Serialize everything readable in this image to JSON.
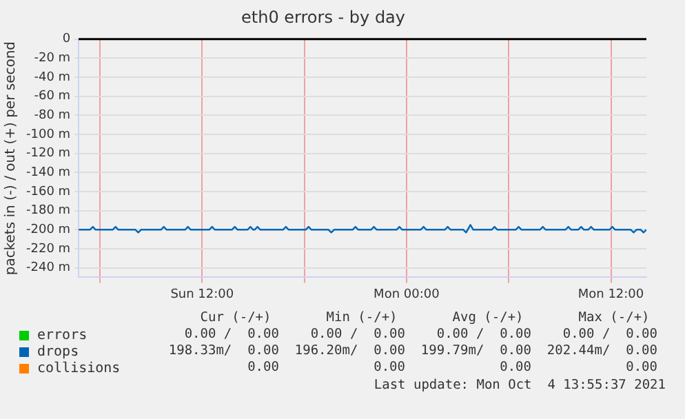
{
  "chart_data": {
    "type": "line",
    "title": "eth0 errors - by day",
    "ylabel": "packets in (-) / out (+) per second",
    "xlim": [
      "2021-10-03T04:45",
      "2021-10-04T14:05"
    ],
    "xticks": [
      {
        "value": "2021-10-03T06:00",
        "label": null
      },
      {
        "value": "2021-10-03T12:00",
        "label": "Sun 12:00"
      },
      {
        "value": "2021-10-03T18:00",
        "label": null
      },
      {
        "value": "2021-10-04T00:00",
        "label": "Mon 00:00"
      },
      {
        "value": "2021-10-04T06:00",
        "label": null
      },
      {
        "value": "2021-10-04T12:00",
        "label": "Mon 12:00"
      }
    ],
    "ylim": [
      -250,
      0
    ],
    "yticks": [
      {
        "value": -240,
        "label": "-240 m"
      },
      {
        "value": -220,
        "label": "-220 m"
      },
      {
        "value": -200,
        "label": "-200 m"
      },
      {
        "value": -180,
        "label": "-180 m"
      },
      {
        "value": -160,
        "label": "-160 m"
      },
      {
        "value": -140,
        "label": "-140 m"
      },
      {
        "value": -120,
        "label": "-120 m"
      },
      {
        "value": -100,
        "label": "-100 m"
      },
      {
        "value": -80,
        "label": "-80 m"
      },
      {
        "value": -60,
        "label": "-60 m"
      },
      {
        "value": -40,
        "label": "-40 m"
      },
      {
        "value": -20,
        "label": "-20 m"
      },
      0
    ],
    "grid": true,
    "legend": "bottom",
    "marker": "none",
    "line_style": "solid",
    "ref_lines": [
      {
        "axis": "y",
        "value": 0,
        "color": "#000000"
      }
    ],
    "series": [
      {
        "name": "errors",
        "color": "#00cc00"
      },
      {
        "name": "drops",
        "color": "#0066b3",
        "x": [
          "2021-10-03T04:45",
          "2021-10-03T05:25",
          "2021-10-03T05:35",
          "2021-10-03T05:45",
          "2021-10-03T06:45",
          "2021-10-03T06:55",
          "2021-10-03T07:05",
          "2021-10-03T08:05",
          "2021-10-03T08:15",
          "2021-10-03T08:25",
          "2021-10-03T09:35",
          "2021-10-03T09:45",
          "2021-10-03T09:55",
          "2021-10-03T11:00",
          "2021-10-03T11:10",
          "2021-10-03T11:20",
          "2021-10-03T12:25",
          "2021-10-03T12:35",
          "2021-10-03T12:45",
          "2021-10-03T13:45",
          "2021-10-03T13:55",
          "2021-10-03T14:05",
          "2021-10-03T14:40",
          "2021-10-03T14:50",
          "2021-10-03T15:00",
          "2021-10-03T15:05",
          "2021-10-03T15:15",
          "2021-10-03T15:25",
          "2021-10-03T16:45",
          "2021-10-03T16:55",
          "2021-10-03T17:05",
          "2021-10-03T18:05",
          "2021-10-03T18:15",
          "2021-10-03T18:25",
          "2021-10-03T19:25",
          "2021-10-03T19:35",
          "2021-10-03T19:45",
          "2021-10-03T20:50",
          "2021-10-03T21:00",
          "2021-10-03T21:10",
          "2021-10-03T21:55",
          "2021-10-03T22:05",
          "2021-10-03T22:15",
          "2021-10-03T23:25",
          "2021-10-03T23:35",
          "2021-10-03T23:45",
          "2021-10-04T00:50",
          "2021-10-04T01:00",
          "2021-10-04T01:10",
          "2021-10-04T02:15",
          "2021-10-04T02:25",
          "2021-10-04T02:35",
          "2021-10-04T03:20",
          "2021-10-04T03:30",
          "2021-10-04T03:45",
          "2021-10-04T03:55",
          "2021-10-04T05:00",
          "2021-10-04T05:10",
          "2021-10-04T05:20",
          "2021-10-04T06:25",
          "2021-10-04T06:35",
          "2021-10-04T06:45",
          "2021-10-04T07:50",
          "2021-10-04T08:00",
          "2021-10-04T08:10",
          "2021-10-04T09:20",
          "2021-10-04T09:30",
          "2021-10-04T09:40",
          "2021-10-04T10:05",
          "2021-10-04T10:15",
          "2021-10-04T10:25",
          "2021-10-04T10:40",
          "2021-10-04T10:50",
          "2021-10-04T11:00",
          "2021-10-04T11:55",
          "2021-10-04T12:05",
          "2021-10-04T12:15",
          "2021-10-04T13:10",
          "2021-10-04T13:20",
          "2021-10-04T13:30",
          "2021-10-04T13:45",
          "2021-10-04T13:55",
          "2021-10-04T14:05"
        ],
        "values": [
          -200,
          -200,
          -197,
          -200,
          -200,
          -197,
          -200,
          -200,
          -203,
          -200,
          -200,
          -197,
          -200,
          -200,
          -197,
          -200,
          -200,
          -197,
          -200,
          -200,
          -197,
          -200,
          -200,
          -197,
          -200,
          -200,
          -197,
          -200,
          -200,
          -197,
          -200,
          -200,
          -197,
          -200,
          -200,
          -203,
          -200,
          -200,
          -197,
          -200,
          -200,
          -197,
          -200,
          -200,
          -197,
          -200,
          -200,
          -197,
          -200,
          -200,
          -197,
          -200,
          -200,
          -203,
          -195,
          -200,
          -200,
          -197,
          -200,
          -200,
          -197,
          -200,
          -200,
          -197,
          -200,
          -200,
          -197,
          -200,
          -200,
          -197,
          -200,
          -200,
          -197,
          -200,
          -200,
          -197,
          -200,
          -200,
          -203,
          -200,
          -200,
          -203,
          -200
        ]
      },
      {
        "name": "collisions",
        "color": "#ff8000"
      }
    ],
    "annotations": [
      "      Cur (-/+)       Min (-/+)       Avg (-/+)       Max (-/+) ",
      "    0.00 /  0.00    0.00 /  0.00    0.00 /  0.00    0.00 /  0.00",
      "  198.33m/  0.00  196.20m/  0.00  199.79m/  0.00  202.44m/  0.00",
      "            0.00            0.00            0.00            0.00",
      "Last update: Mon Oct  4 13:55:37 2021"
    ]
  }
}
